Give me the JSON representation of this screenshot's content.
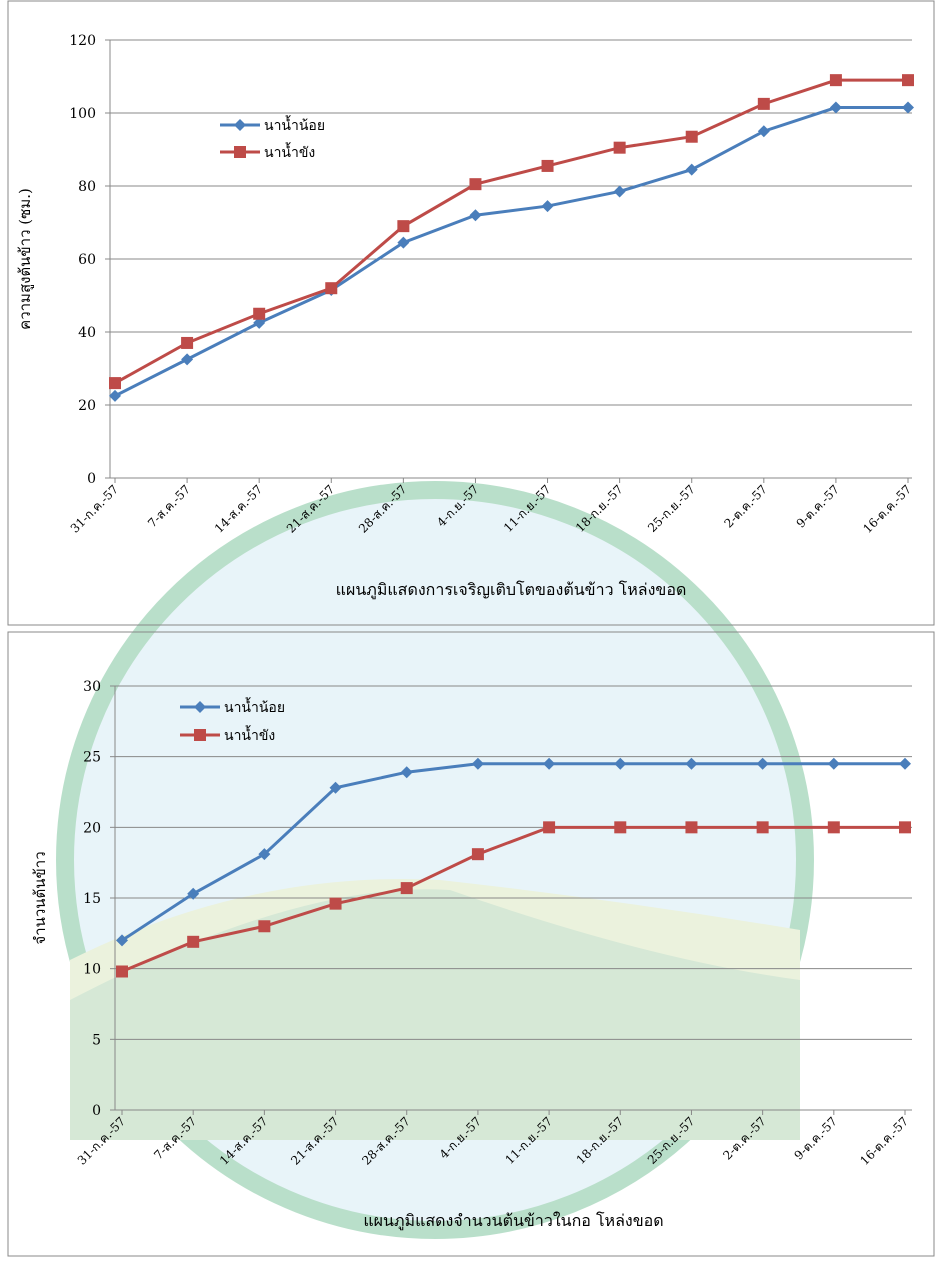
{
  "chart_data": [
    {
      "type": "line",
      "y_label": "ความสูงต้นข้าว (ซม.)",
      "x_label": "แผนภูมิแสดงการเจริญเติบโตของต้นข้าว โหล่งขอด",
      "categories": [
        "31-ก.ค.-57",
        "7-ส.ค.-57",
        "14-ส.ค.-57",
        "21-ส.ค.-57",
        "28-ส.ค.-57",
        "4-ก.ย.-57",
        "11-ก.ย.-57",
        "18-ก.ย.-57",
        "25-ก.ย.-57",
        "2-ต.ค.-57",
        "9-ต.ค.-57",
        "16-ต.ค.-57"
      ],
      "series": [
        {
          "name": "นาน้ำน้อย",
          "color": "#4a7ebb",
          "marker": "diamond",
          "values": [
            22.5,
            32.5,
            42.5,
            51.5,
            64.5,
            72,
            74.5,
            78.5,
            84.5,
            95,
            101.5,
            101.5
          ]
        },
        {
          "name": "นาน้ำขัง",
          "color": "#be4b48",
          "marker": "square",
          "values": [
            26,
            37,
            45,
            52,
            69,
            80.5,
            85.5,
            90.5,
            93.5,
            102.5,
            109,
            109
          ]
        }
      ],
      "ylim": [
        0,
        120
      ],
      "yticks": [
        0,
        20,
        40,
        60,
        80,
        100,
        120
      ],
      "grid": true
    },
    {
      "type": "line",
      "y_label": "จำนวนต้นข้าว",
      "x_label": "แผนภูมิแสดงจำนวนต้นข้าวในกอ โหล่งขอด",
      "categories": [
        "31-ก.ค.-57",
        "7-ส.ค.-57",
        "14-ส.ค.-57",
        "21-ส.ค.-57",
        "28-ส.ค.-57",
        "4-ก.ย.-57",
        "11-ก.ย.-57",
        "18-ก.ย.-57",
        "25-ก.ย.-57",
        "2-ต.ค.-57",
        "9-ต.ค.-57",
        "16-ต.ค.-57"
      ],
      "series": [
        {
          "name": "นาน้ำน้อย",
          "color": "#4a7ebb",
          "marker": "diamond",
          "values": [
            12,
            15.3,
            18.1,
            22.8,
            23.9,
            24.5,
            24.5,
            24.5,
            24.5,
            24.5,
            24.5,
            24.5
          ]
        },
        {
          "name": "นาน้ำขัง",
          "color": "#be4b48",
          "marker": "square",
          "values": [
            9.8,
            11.9,
            13,
            14.6,
            15.7,
            18.1,
            20,
            20,
            20,
            20,
            20,
            20
          ]
        }
      ],
      "ylim": [
        0,
        30
      ],
      "yticks": [
        0,
        5,
        10,
        15,
        20,
        25,
        30
      ],
      "grid": true
    }
  ]
}
